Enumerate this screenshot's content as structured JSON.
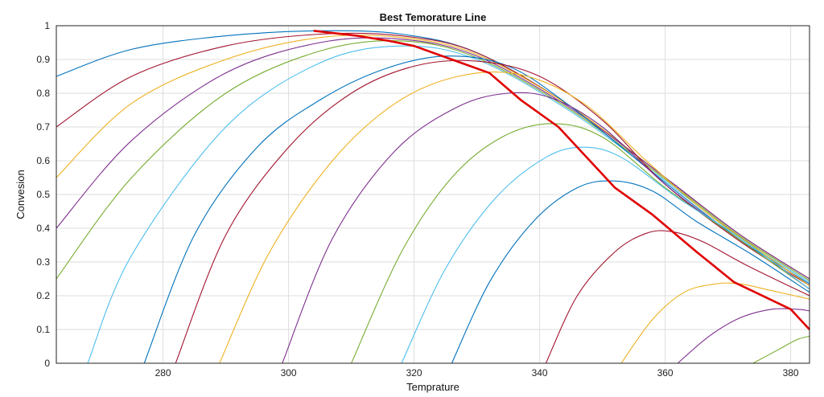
{
  "chart_data": {
    "type": "line",
    "title": "Best Temorature Line",
    "xlabel": "Temprature",
    "ylabel": "Convesion",
    "xlim": [
      263,
      383
    ],
    "ylim": [
      0,
      1
    ],
    "xticks": [
      280,
      300,
      320,
      340,
      360,
      380
    ],
    "yticks": [
      0,
      0.1,
      0.2,
      0.3,
      0.4,
      0.5,
      0.6,
      0.7,
      0.8,
      0.9,
      1
    ],
    "grid": true,
    "curve_colors": [
      "#0072BD",
      "#A2142F",
      "#EDB120",
      "#7E2F8E",
      "#77AC30",
      "#4DBEEE"
    ],
    "series": [
      {
        "x": [
          263,
          275,
          290,
          305,
          318,
          330,
          345,
          360,
          372,
          383
        ],
        "y": [
          0.85,
          0.93,
          0.97,
          0.985,
          0.975,
          0.92,
          0.76,
          0.55,
          0.38,
          0.25
        ]
      },
      {
        "x": [
          263,
          275,
          290,
          305,
          318,
          330,
          345,
          360,
          372,
          383
        ],
        "y": [
          0.7,
          0.85,
          0.94,
          0.975,
          0.97,
          0.92,
          0.76,
          0.55,
          0.38,
          0.25
        ]
      },
      {
        "x": [
          263,
          275,
          290,
          305,
          318,
          330,
          345,
          360,
          372,
          383
        ],
        "y": [
          0.55,
          0.77,
          0.9,
          0.965,
          0.965,
          0.915,
          0.76,
          0.55,
          0.38,
          0.25
        ]
      },
      {
        "x": [
          263,
          275,
          290,
          305,
          318,
          330,
          345,
          360,
          372,
          383
        ],
        "y": [
          0.4,
          0.66,
          0.86,
          0.95,
          0.96,
          0.91,
          0.755,
          0.55,
          0.38,
          0.25
        ]
      },
      {
        "x": [
          263,
          275,
          290,
          305,
          318,
          330,
          345,
          360,
          372,
          383
        ],
        "y": [
          0.25,
          0.55,
          0.8,
          0.925,
          0.955,
          0.905,
          0.75,
          0.545,
          0.375,
          0.245
        ]
      },
      {
        "x": [
          268,
          275,
          290,
          305,
          318,
          330,
          345,
          360,
          372,
          383
        ],
        "y": [
          0.0,
          0.32,
          0.7,
          0.89,
          0.94,
          0.9,
          0.745,
          0.54,
          0.37,
          0.24
        ]
      },
      {
        "x": [
          277,
          285,
          295,
          305,
          315,
          325,
          335,
          345,
          360,
          372,
          383
        ],
        "y": [
          0.0,
          0.38,
          0.64,
          0.78,
          0.87,
          0.91,
          0.88,
          0.76,
          0.535,
          0.365,
          0.235
        ]
      },
      {
        "x": [
          282,
          290,
          300,
          310,
          320,
          330,
          340,
          350,
          360,
          372,
          383
        ],
        "y": [
          0.0,
          0.38,
          0.64,
          0.8,
          0.88,
          0.895,
          0.85,
          0.72,
          0.53,
          0.36,
          0.23
        ]
      },
      {
        "x": [
          289,
          297,
          307,
          317,
          327,
          337,
          347,
          357,
          367,
          383
        ],
        "y": [
          0.0,
          0.33,
          0.6,
          0.77,
          0.85,
          0.855,
          0.77,
          0.6,
          0.44,
          0.23
        ]
      },
      {
        "x": [
          299,
          307,
          317,
          327,
          335,
          342,
          350,
          360,
          370,
          383
        ],
        "y": [
          0.0,
          0.37,
          0.63,
          0.76,
          0.8,
          0.785,
          0.7,
          0.53,
          0.39,
          0.22
        ]
      },
      {
        "x": [
          310,
          318,
          326,
          334,
          342,
          350,
          360,
          370,
          383
        ],
        "y": [
          0.0,
          0.33,
          0.55,
          0.67,
          0.71,
          0.67,
          0.52,
          0.39,
          0.22
        ]
      },
      {
        "x": [
          318,
          325,
          333,
          341,
          347,
          353,
          362,
          372,
          383
        ],
        "y": [
          0.0,
          0.28,
          0.49,
          0.61,
          0.64,
          0.61,
          0.49,
          0.37,
          0.22
        ]
      },
      {
        "x": [
          326,
          332,
          339,
          346,
          352,
          358,
          365,
          374,
          383
        ],
        "y": [
          0.0,
          0.24,
          0.42,
          0.52,
          0.54,
          0.51,
          0.42,
          0.32,
          0.21
        ]
      },
      {
        "x": [
          341,
          346,
          352,
          357,
          361,
          366,
          373,
          383
        ],
        "y": [
          0.0,
          0.2,
          0.33,
          0.385,
          0.39,
          0.36,
          0.29,
          0.2
        ]
      },
      {
        "x": [
          353,
          358,
          363,
          368,
          372,
          377,
          383
        ],
        "y": [
          0.0,
          0.13,
          0.21,
          0.235,
          0.235,
          0.215,
          0.19
        ]
      },
      {
        "x": [
          362,
          367,
          372,
          377,
          381,
          383
        ],
        "y": [
          0.0,
          0.08,
          0.135,
          0.16,
          0.16,
          0.155
        ]
      },
      {
        "x": [
          374,
          378,
          381,
          383
        ],
        "y": [
          0.0,
          0.04,
          0.07,
          0.08
        ]
      }
    ],
    "best_line": {
      "color": "#E00000",
      "x": [
        304,
        311,
        316,
        320,
        326,
        332,
        337,
        343,
        348,
        352,
        358,
        365,
        371,
        380,
        383
      ],
      "y": [
        0.985,
        0.97,
        0.955,
        0.94,
        0.9,
        0.86,
        0.78,
        0.7,
        0.6,
        0.52,
        0.44,
        0.33,
        0.24,
        0.16,
        0.1
      ]
    }
  }
}
